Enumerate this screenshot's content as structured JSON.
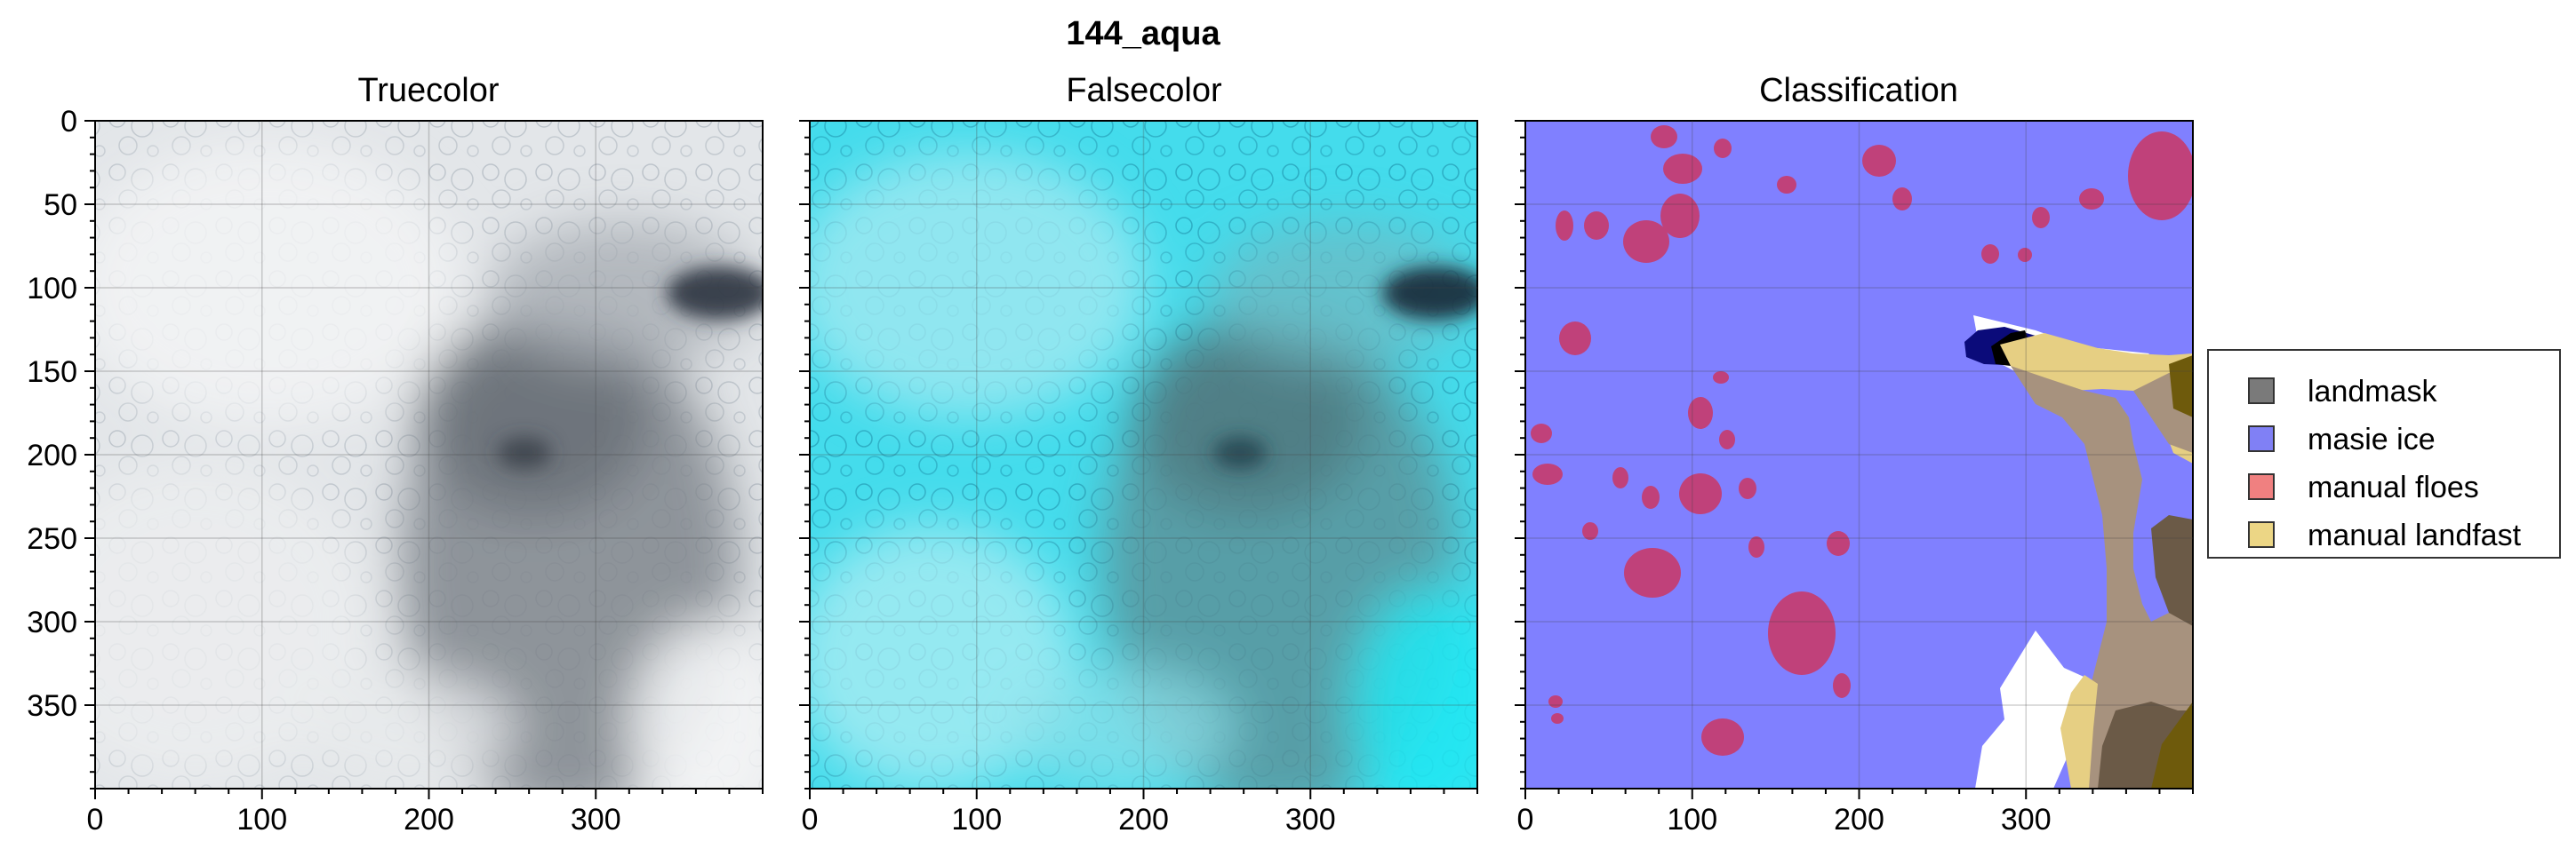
{
  "figure": {
    "title": "144_aqua"
  },
  "panels": [
    {
      "id": "truecolor",
      "title": "Truecolor"
    },
    {
      "id": "falsecolor",
      "title": "Falsecolor"
    },
    {
      "id": "classification",
      "title": "Classification"
    }
  ],
  "axes": {
    "x_ticks": [
      0,
      100,
      200,
      300
    ],
    "y_ticks": [
      0,
      50,
      100,
      150,
      200,
      250,
      300,
      350
    ],
    "x_range": [
      0,
      400
    ],
    "y_range": [
      0,
      400
    ],
    "y_inverted": true,
    "grid": true
  },
  "legend": {
    "placement": "right",
    "items": [
      {
        "label": "landmask",
        "color": "#7a7a7a"
      },
      {
        "label": "masie ice",
        "color": "#8080f5"
      },
      {
        "label": "manual floes",
        "color": "#f08080"
      },
      {
        "label": "manual landfast",
        "color": "#ecd685"
      }
    ]
  },
  "colors": {
    "masie_ice": "#8080ff",
    "floe": "#c0417a",
    "landfast": "#e6cf83",
    "land": "#a7927e",
    "land_dark": "#6b5a47",
    "landfast_on_land": "#6e5a0c",
    "open_water": "#ffffff",
    "deep_blue": "#0b0b7a"
  }
}
